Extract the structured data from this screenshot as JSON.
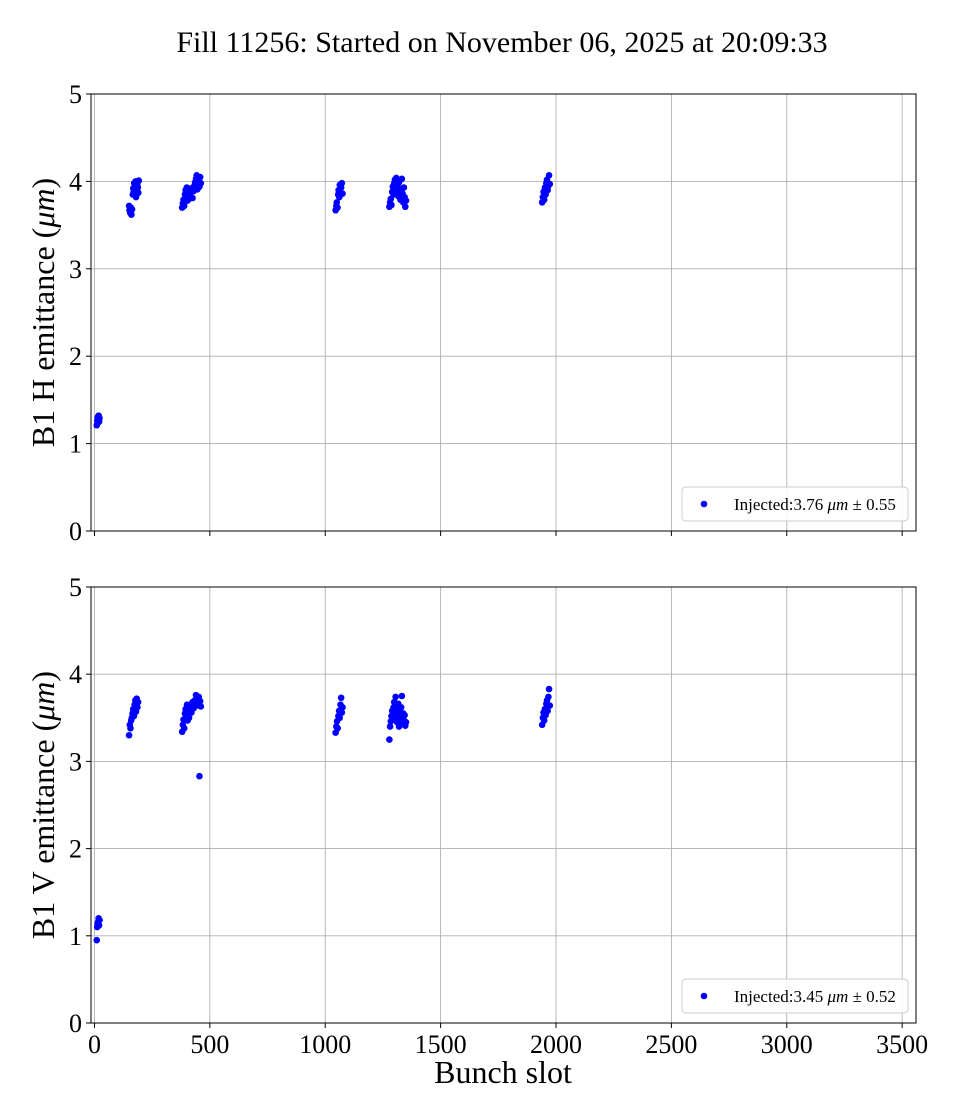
{
  "figure": {
    "title": "Fill 11256: Started on November 06, 2025 at 20:09:33",
    "xlabel": "Bunch slot"
  },
  "chart_data": [
    {
      "type": "scatter",
      "title": "",
      "xlabel": "",
      "ylabel": "B1 H emittance (μm)",
      "ylabel_parts": [
        "B1 H emittance (",
        "μm",
        ")"
      ],
      "xlim": [
        -15,
        3560
      ],
      "ylim": [
        0,
        5
      ],
      "xticks": [
        0,
        500,
        1000,
        1500,
        2000,
        2500,
        3000,
        3500
      ],
      "yticks": [
        0,
        1,
        2,
        3,
        4,
        5
      ],
      "show_xticklabels": false,
      "grid": true,
      "legend": "bottom-right",
      "color": "#0000ff",
      "series": [
        {
          "name": "Injected:3.76 μm ± 0.55",
          "legend_parts": [
            "Injected:3.76 ",
            "μm",
            " ± 0.55"
          ],
          "color": "#0000ff",
          "points": [
            [
              10,
              1.21
            ],
            [
              12,
              1.26
            ],
            [
              14,
              1.3
            ],
            [
              16,
              1.28
            ],
            [
              18,
              1.32
            ],
            [
              20,
              1.25
            ],
            [
              22,
              1.29
            ],
            [
              150,
              3.72
            ],
            [
              152,
              3.67
            ],
            [
              155,
              3.64
            ],
            [
              158,
              3.7
            ],
            [
              160,
              3.62
            ],
            [
              163,
              3.68
            ],
            [
              166,
              3.85
            ],
            [
              168,
              3.92
            ],
            [
              170,
              3.88
            ],
            [
              172,
              3.98
            ],
            [
              175,
              3.95
            ],
            [
              178,
              4.0
            ],
            [
              180,
              3.82
            ],
            [
              183,
              3.9
            ],
            [
              186,
              3.97
            ],
            [
              188,
              3.93
            ],
            [
              190,
              3.87
            ],
            [
              192,
              4.01
            ],
            [
              380,
              3.7
            ],
            [
              383,
              3.75
            ],
            [
              386,
              3.79
            ],
            [
              389,
              3.72
            ],
            [
              392,
              3.85
            ],
            [
              395,
              3.9
            ],
            [
              398,
              3.82
            ],
            [
              400,
              3.93
            ],
            [
              403,
              3.78
            ],
            [
              406,
              3.88
            ],
            [
              410,
              3.8
            ],
            [
              415,
              3.86
            ],
            [
              420,
              3.92
            ],
            [
              425,
              3.81
            ],
            [
              430,
              3.89
            ],
            [
              433,
              3.95
            ],
            [
              436,
              3.99
            ],
            [
              440,
              4.03
            ],
            [
              443,
              4.07
            ],
            [
              446,
              3.91
            ],
            [
              449,
              3.96
            ],
            [
              452,
              4.01
            ],
            [
              455,
              3.94
            ],
            [
              458,
              4.05
            ],
            [
              461,
              3.98
            ],
            [
              1045,
              3.67
            ],
            [
              1048,
              3.72
            ],
            [
              1050,
              3.76
            ],
            [
              1053,
              3.7
            ],
            [
              1056,
              3.85
            ],
            [
              1058,
              3.9
            ],
            [
              1061,
              3.82
            ],
            [
              1063,
              3.96
            ],
            [
              1066,
              3.88
            ],
            [
              1069,
              3.93
            ],
            [
              1072,
              3.98
            ],
            [
              1075,
              3.86
            ],
            [
              1278,
              3.71
            ],
            [
              1281,
              3.76
            ],
            [
              1284,
              3.8
            ],
            [
              1287,
              3.73
            ],
            [
              1290,
              3.88
            ],
            [
              1293,
              3.94
            ],
            [
              1296,
              3.85
            ],
            [
              1299,
              3.98
            ],
            [
              1302,
              4.02
            ],
            [
              1305,
              3.9
            ],
            [
              1308,
              4.04
            ],
            [
              1311,
              3.95
            ],
            [
              1314,
              3.87
            ],
            [
              1317,
              3.83
            ],
            [
              1320,
              3.99
            ],
            [
              1323,
              3.92
            ],
            [
              1326,
              3.79
            ],
            [
              1329,
              3.89
            ],
            [
              1332,
              4.03
            ],
            [
              1335,
              3.86
            ],
            [
              1338,
              3.76
            ],
            [
              1341,
              3.93
            ],
            [
              1344,
              3.82
            ],
            [
              1347,
              3.71
            ],
            [
              1350,
              3.78
            ],
            [
              1940,
              3.76
            ],
            [
              1943,
              3.82
            ],
            [
              1946,
              3.88
            ],
            [
              1949,
              3.79
            ],
            [
              1952,
              3.93
            ],
            [
              1955,
              3.85
            ],
            [
              1958,
              3.98
            ],
            [
              1961,
              4.02
            ],
            [
              1964,
              3.9
            ],
            [
              1967,
              3.95
            ],
            [
              1970,
              4.07
            ],
            [
              1973,
              3.97
            ]
          ]
        }
      ]
    },
    {
      "type": "scatter",
      "title": "",
      "xlabel": "Bunch slot",
      "ylabel": "B1 V emittance (μm)",
      "ylabel_parts": [
        "B1 V emittance (",
        "μm",
        ")"
      ],
      "xlim": [
        -15,
        3560
      ],
      "ylim": [
        0,
        5
      ],
      "xticks": [
        0,
        500,
        1000,
        1500,
        2000,
        2500,
        3000,
        3500
      ],
      "xticklabels": [
        "0",
        "500",
        "1000",
        "1500",
        "2000",
        "2500",
        "3000",
        "3500"
      ],
      "yticks": [
        0,
        1,
        2,
        3,
        4,
        5
      ],
      "show_xticklabels": true,
      "grid": true,
      "legend": "bottom-right",
      "color": "#0000ff",
      "series": [
        {
          "name": "Injected:3.45 μm ± 0.52",
          "legend_parts": [
            "Injected:3.45 ",
            "μm",
            " ± 0.52"
          ],
          "color": "#0000ff",
          "points": [
            [
              10,
              0.95
            ],
            [
              12,
              1.1
            ],
            [
              14,
              1.14
            ],
            [
              16,
              1.16
            ],
            [
              18,
              1.2
            ],
            [
              20,
              1.12
            ],
            [
              22,
              1.18
            ],
            [
              150,
              3.3
            ],
            [
              153,
              3.42
            ],
            [
              156,
              3.38
            ],
            [
              159,
              3.47
            ],
            [
              162,
              3.5
            ],
            [
              165,
              3.55
            ],
            [
              168,
              3.6
            ],
            [
              171,
              3.52
            ],
            [
              174,
              3.65
            ],
            [
              177,
              3.7
            ],
            [
              180,
              3.57
            ],
            [
              183,
              3.72
            ],
            [
              186,
              3.62
            ],
            [
              189,
              3.68
            ],
            [
              380,
              3.34
            ],
            [
              383,
              3.42
            ],
            [
              386,
              3.48
            ],
            [
              389,
              3.38
            ],
            [
              392,
              3.55
            ],
            [
              395,
              3.6
            ],
            [
              398,
              3.52
            ],
            [
              401,
              3.65
            ],
            [
              404,
              3.47
            ],
            [
              407,
              3.58
            ],
            [
              410,
              3.5
            ],
            [
              415,
              3.62
            ],
            [
              420,
              3.56
            ],
            [
              425,
              3.68
            ],
            [
              430,
              3.61
            ],
            [
              435,
              3.7
            ],
            [
              440,
              3.76
            ],
            [
              443,
              3.64
            ],
            [
              446,
              3.72
            ],
            [
              449,
              3.66
            ],
            [
              452,
              3.74
            ],
            [
              455,
              2.83
            ],
            [
              458,
              3.69
            ],
            [
              461,
              3.63
            ],
            [
              1045,
              3.33
            ],
            [
              1048,
              3.4
            ],
            [
              1051,
              3.46
            ],
            [
              1054,
              3.38
            ],
            [
              1057,
              3.52
            ],
            [
              1060,
              3.58
            ],
            [
              1063,
              3.5
            ],
            [
              1066,
              3.65
            ],
            [
              1069,
              3.73
            ],
            [
              1072,
              3.56
            ],
            [
              1075,
              3.62
            ],
            [
              1278,
              3.25
            ],
            [
              1281,
              3.4
            ],
            [
              1284,
              3.46
            ],
            [
              1287,
              3.52
            ],
            [
              1290,
              3.58
            ],
            [
              1293,
              3.48
            ],
            [
              1296,
              3.62
            ],
            [
              1299,
              3.68
            ],
            [
              1302,
              3.55
            ],
            [
              1305,
              3.74
            ],
            [
              1308,
              3.6
            ],
            [
              1311,
              3.45
            ],
            [
              1314,
              3.52
            ],
            [
              1317,
              3.66
            ],
            [
              1320,
              3.4
            ],
            [
              1323,
              3.58
            ],
            [
              1326,
              3.49
            ],
            [
              1329,
              3.62
            ],
            [
              1332,
              3.75
            ],
            [
              1335,
              3.44
            ],
            [
              1338,
              3.55
            ],
            [
              1341,
              3.47
            ],
            [
              1344,
              3.53
            ],
            [
              1347,
              3.41
            ],
            [
              1350,
              3.45
            ],
            [
              1940,
              3.42
            ],
            [
              1943,
              3.5
            ],
            [
              1946,
              3.56
            ],
            [
              1949,
              3.47
            ],
            [
              1952,
              3.6
            ],
            [
              1955,
              3.53
            ],
            [
              1958,
              3.66
            ],
            [
              1961,
              3.7
            ],
            [
              1964,
              3.58
            ],
            [
              1967,
              3.74
            ],
            [
              1970,
              3.83
            ],
            [
              1973,
              3.64
            ]
          ]
        }
      ]
    }
  ]
}
